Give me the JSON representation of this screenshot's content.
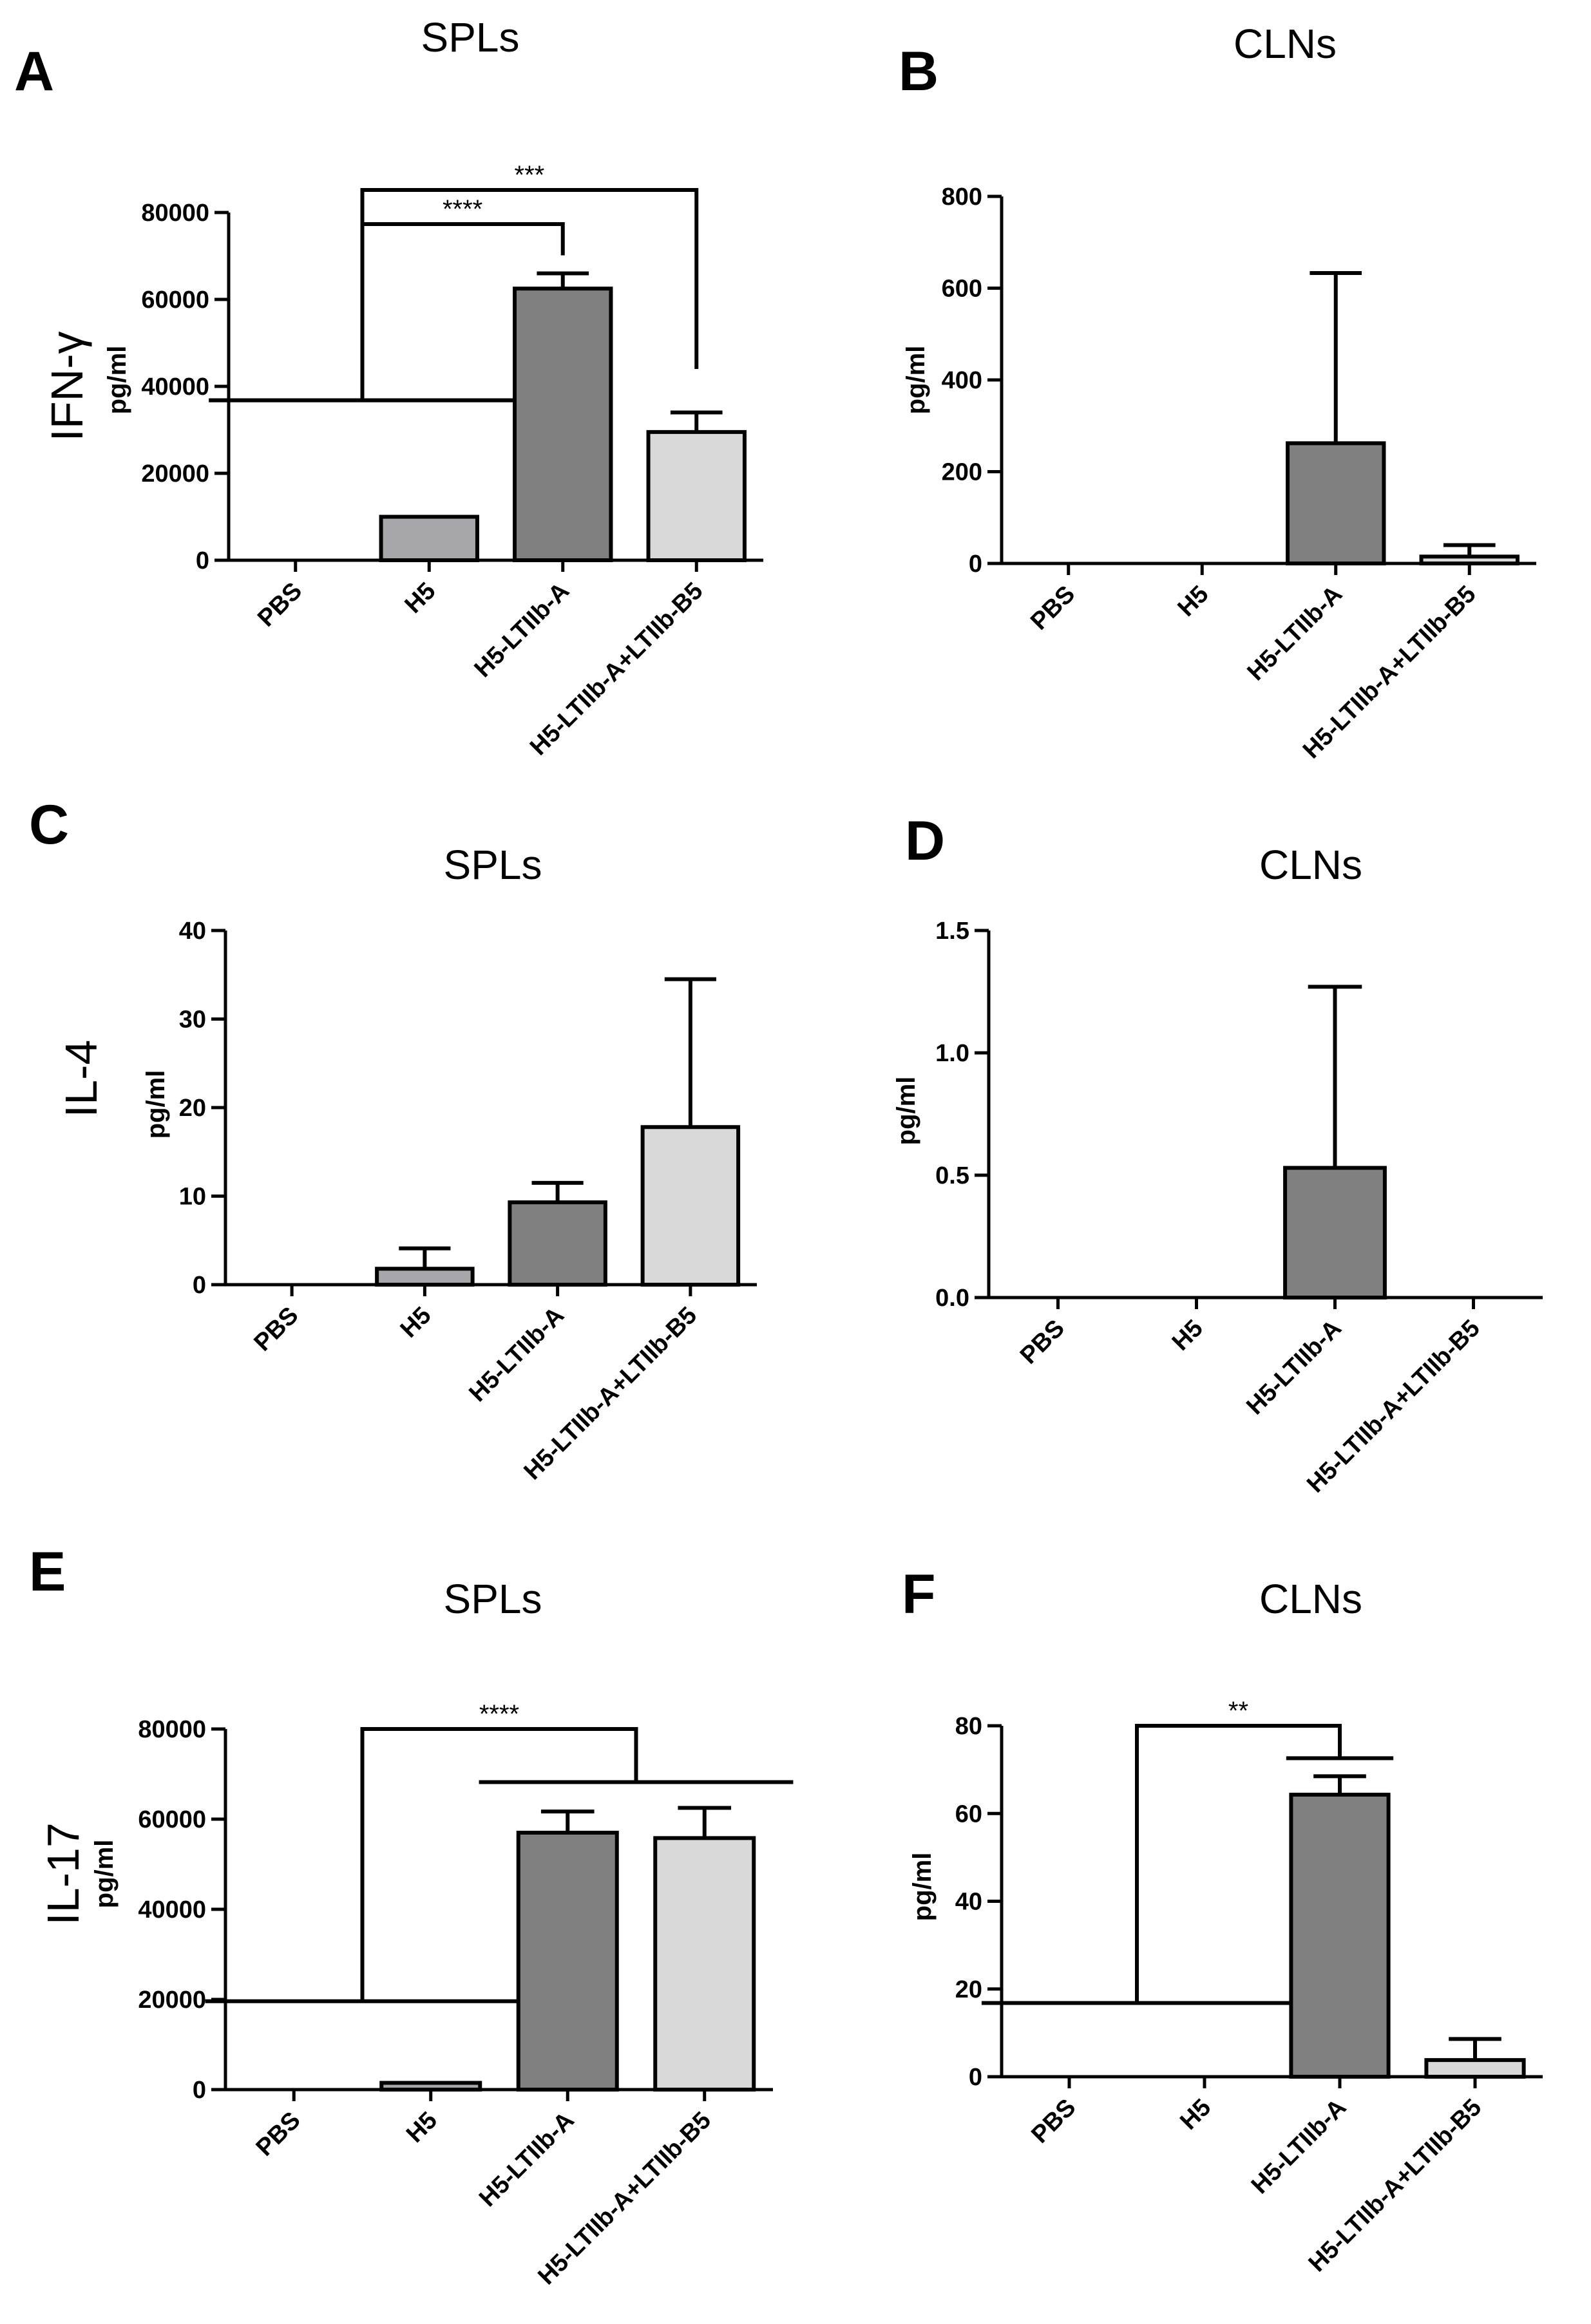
{
  "figure": {
    "rows": [
      {
        "label": "IFN-γ"
      },
      {
        "label": "IL-4"
      },
      {
        "label": "IL-17"
      }
    ],
    "colors": {
      "H5": "#a6a6ab",
      "H5-LTIIb-A": "#808080",
      "H5-LTIIb-A+LTIIb-B5": "#d9d9d9"
    }
  },
  "chart_data": [
    {
      "panel": "A",
      "title": "SPLs",
      "type": "bar",
      "ylabel": "pg/ml",
      "ylim": [
        0,
        80000
      ],
      "yticks": [
        0,
        20000,
        40000,
        60000,
        80000
      ],
      "ytick_labels": [
        "0",
        "20000",
        "40000",
        "60000",
        "80000"
      ],
      "categories": [
        "PBS",
        "H5",
        "H5-LTIIb-A",
        "H5-LTIIb-A+LTIIb-B5"
      ],
      "values": [
        0,
        10000,
        62500,
        29500
      ],
      "errors": [
        0,
        0,
        3500,
        4500
      ],
      "significance": [
        {
          "label": "****",
          "from": [
            0,
            1
          ],
          "to": 2
        },
        {
          "label": "***",
          "from": [
            0,
            1
          ],
          "to": 3
        }
      ]
    },
    {
      "panel": "B",
      "title": "CLNs",
      "type": "bar",
      "ylabel": "pg/ml",
      "ylim": [
        0,
        800
      ],
      "yticks": [
        0,
        200,
        400,
        600,
        800
      ],
      "ytick_labels": [
        "0",
        "200",
        "400",
        "600",
        "800"
      ],
      "categories": [
        "PBS",
        "H5",
        "H5-LTIIb-A",
        "H5-LTIIb-A+LTIIb-B5"
      ],
      "values": [
        0,
        0,
        262,
        15
      ],
      "errors": [
        0,
        0,
        371,
        25
      ],
      "significance": []
    },
    {
      "panel": "C",
      "title": "SPLs",
      "type": "bar",
      "ylabel": "pg/ml",
      "ylim": [
        0,
        40
      ],
      "yticks": [
        0,
        10,
        20,
        30,
        40
      ],
      "ytick_labels": [
        "0",
        "10",
        "20",
        "30",
        "40"
      ],
      "categories": [
        "PBS",
        "H5",
        "H5-LTIIb-A",
        "H5-LTIIb-A+LTIIb-B5"
      ],
      "values": [
        0,
        1.8,
        9.3,
        17.8
      ],
      "errors": [
        0,
        2.3,
        2.2,
        16.7
      ],
      "significance": []
    },
    {
      "panel": "D",
      "title": "CLNs",
      "type": "bar",
      "ylabel": "pg/ml",
      "ylim": [
        0,
        1.5
      ],
      "yticks": [
        0,
        0.5,
        1.0,
        1.5
      ],
      "ytick_labels": [
        "0.0",
        "0.5",
        "1.0",
        "1.5"
      ],
      "categories": [
        "PBS",
        "H5",
        "H5-LTIIb-A",
        "H5-LTIIb-A+LTIIb-B5"
      ],
      "values": [
        0,
        0,
        0.53,
        0
      ],
      "errors": [
        0,
        0,
        0.74,
        0
      ],
      "significance": []
    },
    {
      "panel": "E",
      "title": "SPLs",
      "type": "bar",
      "ylabel": "pg/ml",
      "ylim": [
        0,
        80000
      ],
      "yticks": [
        0,
        20000,
        40000,
        60000,
        80000
      ],
      "ytick_labels": [
        "0",
        "20000",
        "40000",
        "60000",
        "80000"
      ],
      "categories": [
        "PBS",
        "H5",
        "H5-LTIIb-A",
        "H5-LTIIb-A+LTIIb-B5"
      ],
      "values": [
        0,
        1500,
        57000,
        55800
      ],
      "errors": [
        0,
        0,
        4700,
        6700
      ],
      "significance": [
        {
          "label": "****",
          "from": [
            0,
            1
          ],
          "to": [
            2,
            3
          ]
        }
      ]
    },
    {
      "panel": "F",
      "title": "CLNs",
      "type": "bar",
      "ylabel": "pg/ml",
      "ylim": [
        0,
        80
      ],
      "yticks": [
        0,
        20,
        40,
        60,
        80
      ],
      "ytick_labels": [
        "0",
        "20",
        "40",
        "60",
        "80"
      ],
      "categories": [
        "PBS",
        "H5",
        "H5-LTIIb-A",
        "H5-LTIIb-A+LTIIb-B5"
      ],
      "values": [
        0,
        0,
        64.3,
        3.8
      ],
      "errors": [
        0,
        0,
        4.2,
        4.8
      ],
      "significance": [
        {
          "label": "**",
          "from": [
            0,
            1
          ],
          "to": 2
        }
      ]
    }
  ]
}
